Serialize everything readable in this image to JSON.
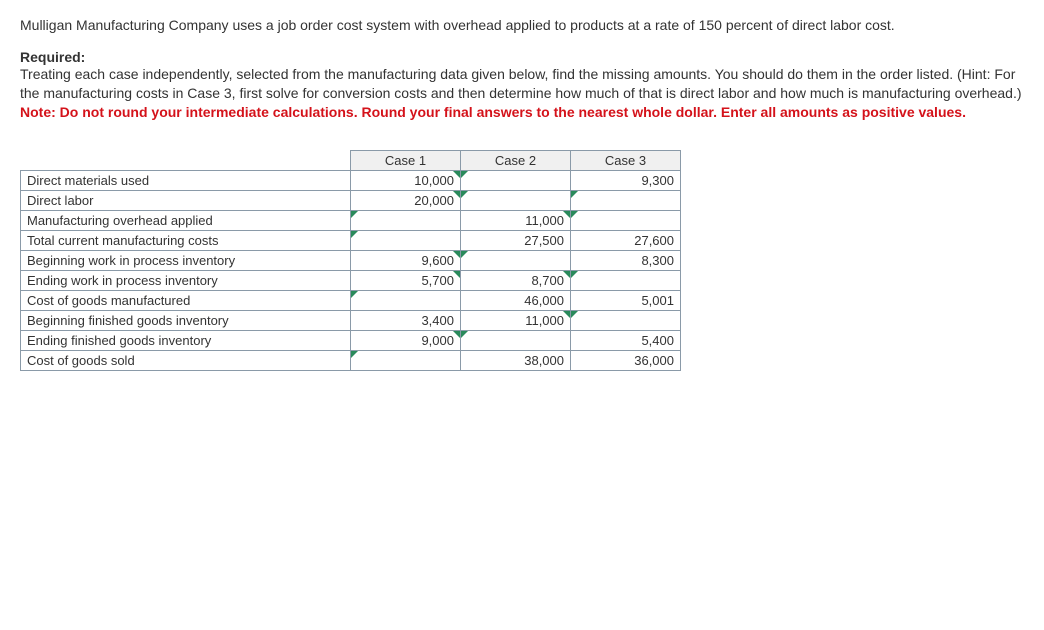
{
  "intro": "Mulligan Manufacturing Company uses a job order cost system with overhead applied to products at a rate of 150 percent of direct labor cost.",
  "required": {
    "label": "Required:",
    "body": "Treating each case independently, selected from the manufacturing data given below, find the missing amounts. You should do them in the order listed. (Hint: For the manufacturing costs in Case 3, first solve for conversion costs and then determine how much of that is direct labor and how much is manufacturing overhead.)",
    "note": "Note: Do not round your intermediate calculations. Round your final answers to the nearest whole dollar. Enter all amounts as positive values."
  },
  "table": {
    "headers": [
      "Case 1",
      "Case 2",
      "Case 3"
    ],
    "rows": [
      {
        "label": "Direct materials used",
        "c1": {
          "v": "10,000",
          "m": "r"
        },
        "c2": {
          "v": "",
          "m": "l"
        },
        "c3": {
          "v": "9,300",
          "m": ""
        }
      },
      {
        "label": "Direct labor",
        "c1": {
          "v": "20,000",
          "m": "r"
        },
        "c2": {
          "v": "",
          "m": "l"
        },
        "c3": {
          "v": "",
          "m": "l"
        }
      },
      {
        "label": "Manufacturing overhead applied",
        "c1": {
          "v": "",
          "m": "l"
        },
        "c2": {
          "v": "11,000",
          "m": "r"
        },
        "c3": {
          "v": "",
          "m": "l"
        }
      },
      {
        "label": "Total current manufacturing costs",
        "c1": {
          "v": "",
          "m": "l"
        },
        "c2": {
          "v": "27,500",
          "m": ""
        },
        "c3": {
          "v": "27,600",
          "m": ""
        }
      },
      {
        "label": "Beginning work in process inventory",
        "c1": {
          "v": "9,600",
          "m": "r"
        },
        "c2": {
          "v": "",
          "m": "l"
        },
        "c3": {
          "v": "8,300",
          "m": ""
        }
      },
      {
        "label": "Ending work in process inventory",
        "c1": {
          "v": "5,700",
          "m": "r"
        },
        "c2": {
          "v": "8,700",
          "m": "r"
        },
        "c3": {
          "v": "",
          "m": "l"
        }
      },
      {
        "label": "Cost of goods manufactured",
        "c1": {
          "v": "",
          "m": "l"
        },
        "c2": {
          "v": "46,000",
          "m": ""
        },
        "c3": {
          "v": "5,001",
          "m": ""
        }
      },
      {
        "label": "Beginning finished goods inventory",
        "c1": {
          "v": "3,400",
          "m": ""
        },
        "c2": {
          "v": "11,000",
          "m": "r"
        },
        "c3": {
          "v": "",
          "m": "l"
        }
      },
      {
        "label": "Ending finished goods inventory",
        "c1": {
          "v": "9,000",
          "m": "r"
        },
        "c2": {
          "v": "",
          "m": "l"
        },
        "c3": {
          "v": "5,400",
          "m": ""
        }
      },
      {
        "label": "Cost of goods sold",
        "c1": {
          "v": "",
          "m": "l"
        },
        "c2": {
          "v": "38,000",
          "m": ""
        },
        "c3": {
          "v": "36,000",
          "m": ""
        }
      }
    ]
  }
}
